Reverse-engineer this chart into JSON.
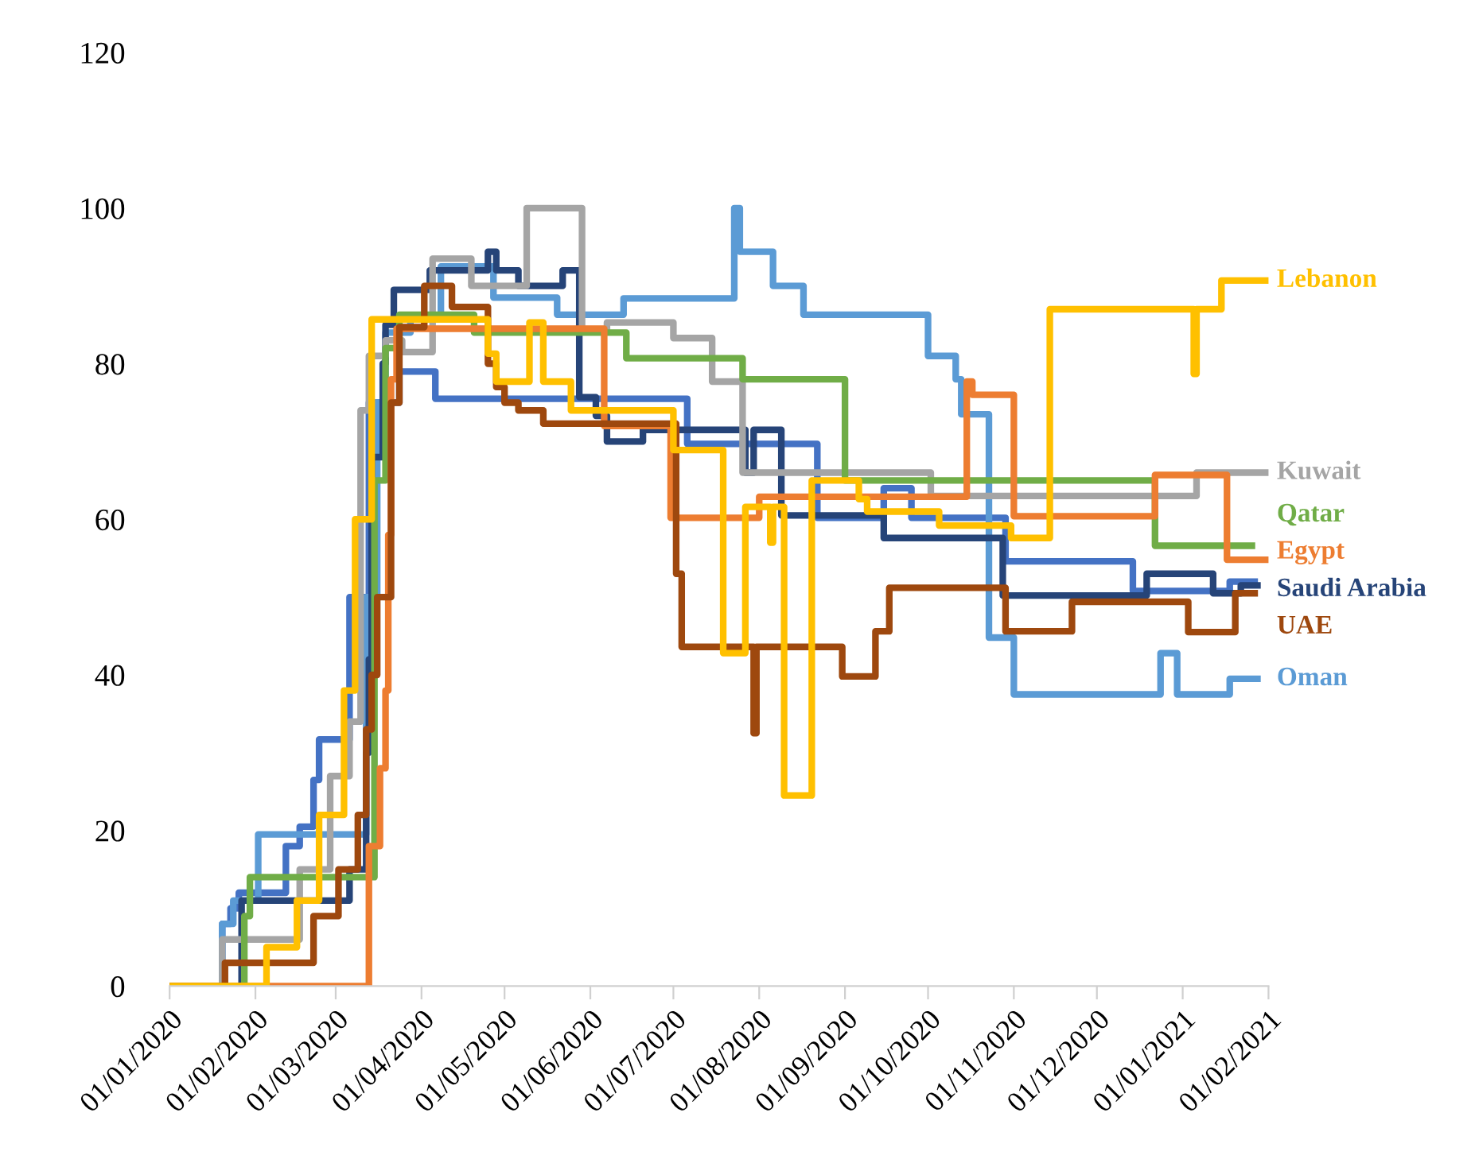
{
  "chart_data": {
    "type": "step",
    "xlim": [
      "2020-01-01",
      "2021-02-01"
    ],
    "xticks": [
      {
        "value": "2020-01-01",
        "label": "01/01/2020"
      },
      {
        "value": "2020-02-01",
        "label": "01/02/2020"
      },
      {
        "value": "2020-03-01",
        "label": "01/03/2020"
      },
      {
        "value": "2020-04-01",
        "label": "01/04/2020"
      },
      {
        "value": "2020-05-01",
        "label": "01/05/2020"
      },
      {
        "value": "2020-06-01",
        "label": "01/06/2020"
      },
      {
        "value": "2020-07-01",
        "label": "01/07/2020"
      },
      {
        "value": "2020-08-01",
        "label": "01/08/2020"
      },
      {
        "value": "2020-09-01",
        "label": "01/09/2020"
      },
      {
        "value": "2020-10-01",
        "label": "01/10/2020"
      },
      {
        "value": "2020-11-01",
        "label": "01/11/2020"
      },
      {
        "value": "2020-12-01",
        "label": "01/12/2020"
      },
      {
        "value": "2021-01-01",
        "label": "01/01/2021"
      },
      {
        "value": "2021-02-01",
        "label": "01/02/2021"
      }
    ],
    "ylim": [
      0,
      120
    ],
    "yticks": [
      0,
      20,
      40,
      60,
      80,
      100,
      120
    ],
    "grid": false,
    "legend": false,
    "marker": "none",
    "line_style": "solid",
    "series": [
      {
        "color": "#4472c4",
        "x": [
          "2020-01-01",
          "2020-01-20",
          "2020-01-23",
          "2020-01-26",
          "2020-02-12",
          "2020-02-17",
          "2020-02-22",
          "2020-02-24",
          "2020-03-06",
          "2020-03-13",
          "2020-03-24",
          "2020-04-06",
          "2020-07-06",
          "2020-08-22",
          "2020-09-15",
          "2020-09-25",
          "2020-10-29",
          "2020-12-14",
          "2021-01-18",
          "2021-01-27"
        ],
        "values": [
          0,
          8,
          10,
          12,
          18,
          20.5,
          26.5,
          31.7,
          50,
          75,
          79,
          75.5,
          69.7,
          60.2,
          64,
          60.2,
          54.6,
          50.8,
          52,
          52
        ]
      },
      {
        "name": "Oman",
        "color": "#5b9bd5",
        "x": [
          "2020-01-01",
          "2020-01-20",
          "2020-01-24",
          "2020-02-02",
          "2020-03-12",
          "2020-03-16",
          "2020-03-19",
          "2020-03-28",
          "2020-04-08",
          "2020-04-27",
          "2020-05-20",
          "2020-06-13",
          "2020-07-23",
          "2020-07-25",
          "2020-08-06",
          "2020-08-17",
          "2020-10-01",
          "2020-10-11",
          "2020-10-13",
          "2020-10-23",
          "2020-11-01",
          "2020-12-24",
          "2020-12-30",
          "2021-01-18",
          "2021-01-28"
        ],
        "values": [
          0,
          8,
          11,
          19.5,
          50,
          75,
          84,
          86,
          92.5,
          88.5,
          86.3,
          88.4,
          100,
          94.4,
          90,
          86.3,
          81,
          78,
          73.5,
          44.8,
          37.5,
          42.8,
          37.5,
          39.5,
          39.5
        ]
      },
      {
        "name": "Saudi Arabia",
        "color": "#264478",
        "x": [
          "2020-01-01",
          "2020-01-27",
          "2020-03-06",
          "2020-03-12",
          "2020-03-13",
          "2020-03-14",
          "2020-03-18",
          "2020-03-19",
          "2020-03-22",
          "2020-04-04",
          "2020-04-25",
          "2020-04-28",
          "2020-05-06",
          "2020-05-22",
          "2020-05-28",
          "2020-06-03",
          "2020-06-07",
          "2020-06-20",
          "2020-07-27",
          "2020-07-30",
          "2020-08-09",
          "2020-09-15",
          "2020-10-28",
          "2020-12-19",
          "2021-01-12",
          "2021-01-22",
          "2021-01-28"
        ],
        "values": [
          0,
          11,
          15,
          30,
          42,
          68,
          80,
          85,
          89.5,
          92,
          94.4,
          92,
          90,
          92,
          75.7,
          73.3,
          70,
          71.5,
          66,
          71.5,
          60.5,
          57.6,
          50.2,
          53,
          50.5,
          51.5,
          51.5
        ]
      },
      {
        "name": "Kuwait",
        "color": "#a5a5a5",
        "x": [
          "2020-01-01",
          "2020-01-20",
          "2020-02-17",
          "2020-02-28",
          "2020-03-06",
          "2020-03-10",
          "2020-03-13",
          "2020-03-19",
          "2020-03-25",
          "2020-04-05",
          "2020-04-19",
          "2020-05-09",
          "2020-05-29",
          "2020-06-07",
          "2020-07-01",
          "2020-07-15",
          "2020-07-26",
          "2020-10-02",
          "2021-01-06",
          "2021-01-31"
        ],
        "values": [
          0,
          6,
          15,
          27,
          34,
          74,
          81,
          83,
          81.5,
          93.5,
          90,
          100,
          84.3,
          85.3,
          83.3,
          77.7,
          66,
          63,
          66,
          66
        ]
      },
      {
        "name": "Qatar",
        "color": "#70ad47",
        "x": [
          "2020-01-01",
          "2020-01-28",
          "2020-01-30",
          "2020-03-07",
          "2020-03-15",
          "2020-03-19",
          "2020-03-24",
          "2020-04-20",
          "2020-06-14",
          "2020-07-26",
          "2020-09-01",
          "2020-12-22",
          "2021-01-26"
        ],
        "values": [
          0,
          9,
          14,
          14,
          65,
          82,
          86.3,
          84,
          80.7,
          78,
          65,
          56.6,
          56.6
        ]
      },
      {
        "name": "Egypt",
        "color": "#ed7d31",
        "x": [
          "2020-01-01",
          "2020-03-13",
          "2020-03-17",
          "2020-03-19",
          "2020-03-20",
          "2020-03-21",
          "2020-03-23",
          "2020-06-06",
          "2020-06-30",
          "2020-08-01",
          "2020-10-15",
          "2020-10-17",
          "2020-11-01",
          "2020-12-22",
          "2021-01-17",
          "2021-01-31"
        ],
        "values": [
          0,
          18,
          28,
          38,
          58,
          78,
          84.5,
          72,
          60.2,
          62.9,
          77.7,
          76,
          60.4,
          65.7,
          54.8,
          54.8
        ]
      },
      {
        "name": "UAE",
        "color": "#9e480e",
        "x": [
          "2020-01-01",
          "2020-01-21",
          "2020-02-22",
          "2020-03-02",
          "2020-03-09",
          "2020-03-12",
          "2020-03-14",
          "2020-03-16",
          "2020-03-21",
          "2020-03-24",
          "2020-04-02",
          "2020-04-12",
          "2020-04-25",
          "2020-04-28",
          "2020-05-01",
          "2020-05-06",
          "2020-05-15",
          "2020-07-02",
          "2020-07-04",
          "2020-07-30",
          "2020-07-31",
          "2020-08-31",
          "2020-09-12",
          "2020-09-17",
          "2020-10-29",
          "2020-11-22",
          "2021-01-03",
          "2021-01-20",
          "2021-01-27"
        ],
        "values": [
          0,
          3,
          9,
          15,
          22,
          33,
          40,
          50,
          75,
          84.7,
          90,
          87.3,
          80,
          77,
          75,
          74,
          72.3,
          53,
          43.6,
          32.5,
          43.6,
          39.8,
          45.6,
          51.2,
          45.6,
          49.4,
          45.5,
          50.5,
          50.5
        ]
      },
      {
        "name": "Lebanon",
        "color": "#ffc000",
        "x": [
          "2020-01-01",
          "2020-02-05",
          "2020-02-16",
          "2020-02-24",
          "2020-03-04",
          "2020-03-08",
          "2020-03-14",
          "2020-04-25",
          "2020-04-28",
          "2020-05-10",
          "2020-05-15",
          "2020-05-25",
          "2020-07-01",
          "2020-07-19",
          "2020-07-27",
          "2020-08-05",
          "2020-08-06",
          "2020-08-10",
          "2020-08-20",
          "2020-09-06",
          "2020-09-09",
          "2020-10-05",
          "2020-10-31",
          "2020-11-14",
          "2021-01-05",
          "2021-01-06",
          "2021-01-15",
          "2021-01-31"
        ],
        "values": [
          0,
          5,
          11,
          22,
          38,
          60,
          85.7,
          81.3,
          77.7,
          85.3,
          77.7,
          74,
          68.9,
          42.8,
          61.6,
          57,
          61.6,
          24.5,
          65,
          62.6,
          61,
          59.2,
          57.6,
          87,
          78.7,
          87,
          90.7,
          90.7
        ]
      }
    ]
  }
}
